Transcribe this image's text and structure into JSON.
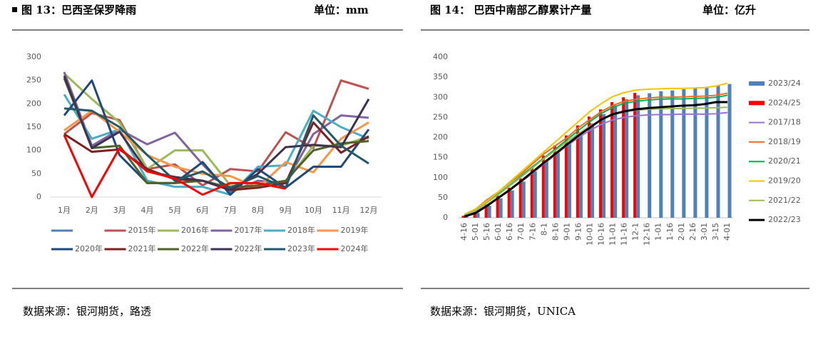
{
  "chart_data": [
    {
      "type": "line",
      "title": "图 13：巴西圣保罗降雨",
      "unit": "单位：mm",
      "source": "数据来源：银河期货，路透",
      "categories": [
        "1月",
        "2月",
        "3月",
        "4月",
        "5月",
        "6月",
        "7月",
        "8月",
        "9月",
        "10月",
        "11月",
        "12月"
      ],
      "ylim": [
        0,
        300
      ],
      "yticks": [
        0,
        50,
        100,
        150,
        200,
        250,
        300
      ],
      "grid": false,
      "series": [
        {
          "name": null,
          "color": "#4f81bd",
          "values": [
            null,
            null,
            null,
            null,
            null,
            null,
            null,
            null,
            null,
            null,
            null,
            null
          ]
        },
        {
          "name": "2015年",
          "color": "#c0504d",
          "values": [
            135,
            180,
            165,
            60,
            70,
            25,
            60,
            55,
            139,
            105,
            250,
            232
          ]
        },
        {
          "name": "2016年",
          "color": "#9bbb59",
          "values": [
            265,
            210,
            160,
            60,
            100,
            100,
            25,
            20,
            30,
            110,
            110,
            130
          ]
        },
        {
          "name": "2017年",
          "color": "#8064a2",
          "values": [
            268,
            110,
            145,
            113,
            138,
            70,
            10,
            35,
            30,
            135,
            175,
            170
          ]
        },
        {
          "name": "2018年",
          "color": "#4bacc6",
          "values": [
            220,
            125,
            145,
            35,
            22,
            22,
            5,
            65,
            68,
            185,
            150,
            125
          ]
        },
        {
          "name": "2019年",
          "color": "#f79646",
          "values": [
            143,
            185,
            140,
            90,
            65,
            50,
            45,
            20,
            75,
            53,
            125,
            160
          ]
        },
        {
          "name": "2020年",
          "color": "#1f497d",
          "values": [
            175,
            250,
            90,
            30,
            30,
            75,
            5,
            60,
            20,
            65,
            65,
            145
          ]
        },
        {
          "name": "2021年",
          "color": "#7f1f1f",
          "values": [
            135,
            97,
            102,
            60,
            38,
            35,
            15,
            20,
            30,
            160,
            95,
            130
          ]
        },
        {
          "name": "2022年",
          "color": "#4f6228",
          "values": [
            255,
            105,
            110,
            30,
            30,
            35,
            20,
            25,
            35,
            100,
            115,
            120
          ]
        },
        {
          "name": "2022年",
          "color": "#3f3151",
          "values": [
            260,
            105,
            140,
            55,
            43,
            35,
            15,
            50,
            107,
            112,
            107,
            210
          ]
        },
        {
          "name": "2023年",
          "color": "#215968",
          "values": [
            190,
            185,
            150,
            90,
            35,
            55,
            20,
            45,
            20,
            175,
            110,
            72
          ]
        },
        {
          "name": "2024年",
          "color": "#ff0000",
          "values": [
            133,
            0,
            105,
            55,
            40,
            5,
            30,
            30,
            18,
            null,
            null,
            null
          ]
        }
      ]
    },
    {
      "type": "combo",
      "title": "图 14：  巴西中南部乙醇累计产量",
      "unit": "单位：亿升",
      "source": "数据来源：银河期货，UNICA",
      "categories": [
        "4-16",
        "5-01",
        "5-16",
        "6-01",
        "6-16",
        "7-01",
        "7-16",
        "8-1",
        "8-16",
        "9-01",
        "9-16",
        "10-01",
        "10-16",
        "11-01",
        "11-16",
        "12-1",
        "12-16",
        "1-01",
        "1-16",
        "2-01",
        "2-16",
        "3-01",
        "3-15",
        "4-01"
      ],
      "ylim": [
        0,
        400
      ],
      "yticks": [
        0,
        50,
        100,
        150,
        200,
        250,
        300,
        350,
        400
      ],
      "grid": false,
      "series": [
        {
          "name": "2023/24",
          "type": "bar",
          "color": "#4f81bd",
          "values": [
            3,
            12,
            30,
            48,
            68,
            90,
            115,
            140,
            162,
            185,
            210,
            235,
            258,
            280,
            295,
            305,
            310,
            315,
            317,
            320,
            323,
            326,
            330,
            333
          ]
        },
        {
          "name": "2024/25",
          "type": "bar",
          "color": "#ff0000",
          "values": [
            5,
            15,
            33,
            55,
            75,
            98,
            125,
            155,
            180,
            205,
            230,
            252,
            270,
            288,
            300,
            311,
            null,
            null,
            null,
            null,
            null,
            null,
            null,
            null
          ]
        },
        {
          "name": "2017/18",
          "type": "line",
          "color": "#9b72cf",
          "values": [
            5,
            15,
            32,
            50,
            70,
            90,
            112,
            135,
            158,
            180,
            200,
            218,
            233,
            244,
            250,
            254,
            256,
            257,
            257,
            258,
            258,
            258,
            259,
            262
          ]
        },
        {
          "name": "2018/19",
          "type": "line",
          "color": "#f26b21",
          "values": [
            8,
            22,
            45,
            65,
            88,
            110,
            135,
            160,
            180,
            200,
            225,
            245,
            265,
            280,
            290,
            295,
            298,
            300,
            300,
            301,
            302,
            303,
            305,
            310
          ]
        },
        {
          "name": "2020/21",
          "type": "line",
          "color": "#00b050",
          "values": [
            8,
            20,
            40,
            60,
            82,
            105,
            128,
            150,
            172,
            195,
            218,
            240,
            260,
            275,
            285,
            290,
            293,
            295,
            296,
            296,
            297,
            298,
            300,
            305
          ]
        },
        {
          "name": "2019/20",
          "type": "line",
          "color": "#f5c400",
          "values": [
            8,
            22,
            42,
            65,
            90,
            115,
            140,
            165,
            190,
            215,
            240,
            265,
            285,
            302,
            312,
            318,
            320,
            321,
            322,
            322,
            323,
            324,
            328,
            335
          ]
        },
        {
          "name": "2021/22",
          "type": "line",
          "color": "#9bbb59",
          "values": [
            7,
            18,
            38,
            58,
            80,
            102,
            125,
            148,
            168,
            190,
            210,
            228,
            245,
            258,
            265,
            268,
            270,
            271,
            272,
            272,
            273,
            273,
            274,
            275
          ]
        },
        {
          "name": "2022/23",
          "type": "line",
          "color": "#000000",
          "values": [
            3,
            12,
            30,
            50,
            70,
            92,
            115,
            138,
            160,
            183,
            205,
            225,
            245,
            258,
            265,
            270,
            273,
            275,
            277,
            279,
            280,
            283,
            288,
            288
          ]
        }
      ]
    }
  ]
}
